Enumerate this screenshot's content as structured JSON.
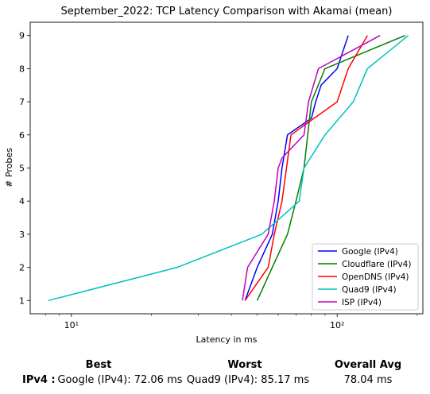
{
  "chart_data": {
    "type": "line",
    "title": "September_2022: TCP Latency Comparison with Akamai (mean)",
    "xlabel": "Latency in ms",
    "ylabel": "# Probes",
    "xscale": "log",
    "xlim": [
      7,
      210
    ],
    "ylim": [
      0.6,
      9.4
    ],
    "yticks": [
      1,
      2,
      3,
      4,
      5,
      6,
      7,
      8,
      9
    ],
    "xtick_labels": [
      "10¹",
      "10²"
    ],
    "legend_position": "lower-right",
    "grid": false,
    "series": [
      {
        "name": "Google (IPv4)",
        "color": "#0000ff",
        "x": [
          45,
          50,
          57,
          60,
          62,
          65,
          80,
          83,
          87,
          100,
          110
        ],
        "y": [
          1,
          2,
          3,
          4,
          5,
          6,
          6.5,
          7,
          7.5,
          8,
          9
        ]
      },
      {
        "name": "Cloudflare (IPv4)",
        "color": "#008000",
        "x": [
          50,
          57,
          65,
          70,
          75,
          80,
          90,
          180
        ],
        "y": [
          1,
          2,
          3,
          4,
          5,
          7,
          8,
          9
        ]
      },
      {
        "name": "OpenDNS (IPv4)",
        "color": "#ff0000",
        "x": [
          45,
          55,
          58,
          62,
          67,
          100,
          110,
          130
        ],
        "y": [
          1,
          2,
          3,
          4,
          6,
          7,
          8,
          9
        ]
      },
      {
        "name": "Quad9 (IPv4)",
        "color": "#00bfbf",
        "x": [
          8.2,
          25,
          52,
          72,
          75,
          90,
          115,
          130,
          185
        ],
        "y": [
          1,
          2,
          3,
          4,
          5,
          6,
          7,
          8,
          9
        ]
      },
      {
        "name": "ISP (IPv4)",
        "color": "#bf00bf",
        "x": [
          44,
          46,
          55,
          58,
          60,
          62,
          75,
          78,
          85,
          145
        ],
        "y": [
          1,
          2,
          3,
          4,
          5,
          5.3,
          6,
          7,
          8,
          9
        ]
      }
    ]
  },
  "summary": {
    "best_header": "Best",
    "worst_header": "Worst",
    "overall_header": "Overall Avg",
    "row_label": "IPv4 :",
    "best_value": "Google (IPv4): 72.06 ms",
    "worst_value": "Quad9 (IPv4): 85.17 ms",
    "overall_value": "78.04 ms"
  }
}
